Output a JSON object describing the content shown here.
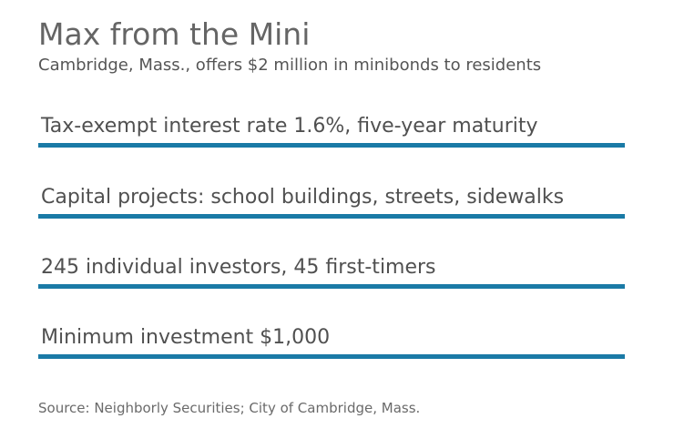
{
  "title": "Max from the Mini",
  "subtitle": "Cambridge, Mass., offers $2 million in minibonds to residents",
  "facts": [
    "Tax-exempt interest rate 1.6%, five-year maturity",
    "Capital projects: school buildings, streets, sidewalks",
    "245 individual investors, 45 first-timers",
    "Minimum investment $1,000"
  ],
  "source": "Source: Neighborly Securities; City of Cambridge, Mass.",
  "colors": {
    "rule": "#1a7aa6",
    "text": "#505050"
  }
}
